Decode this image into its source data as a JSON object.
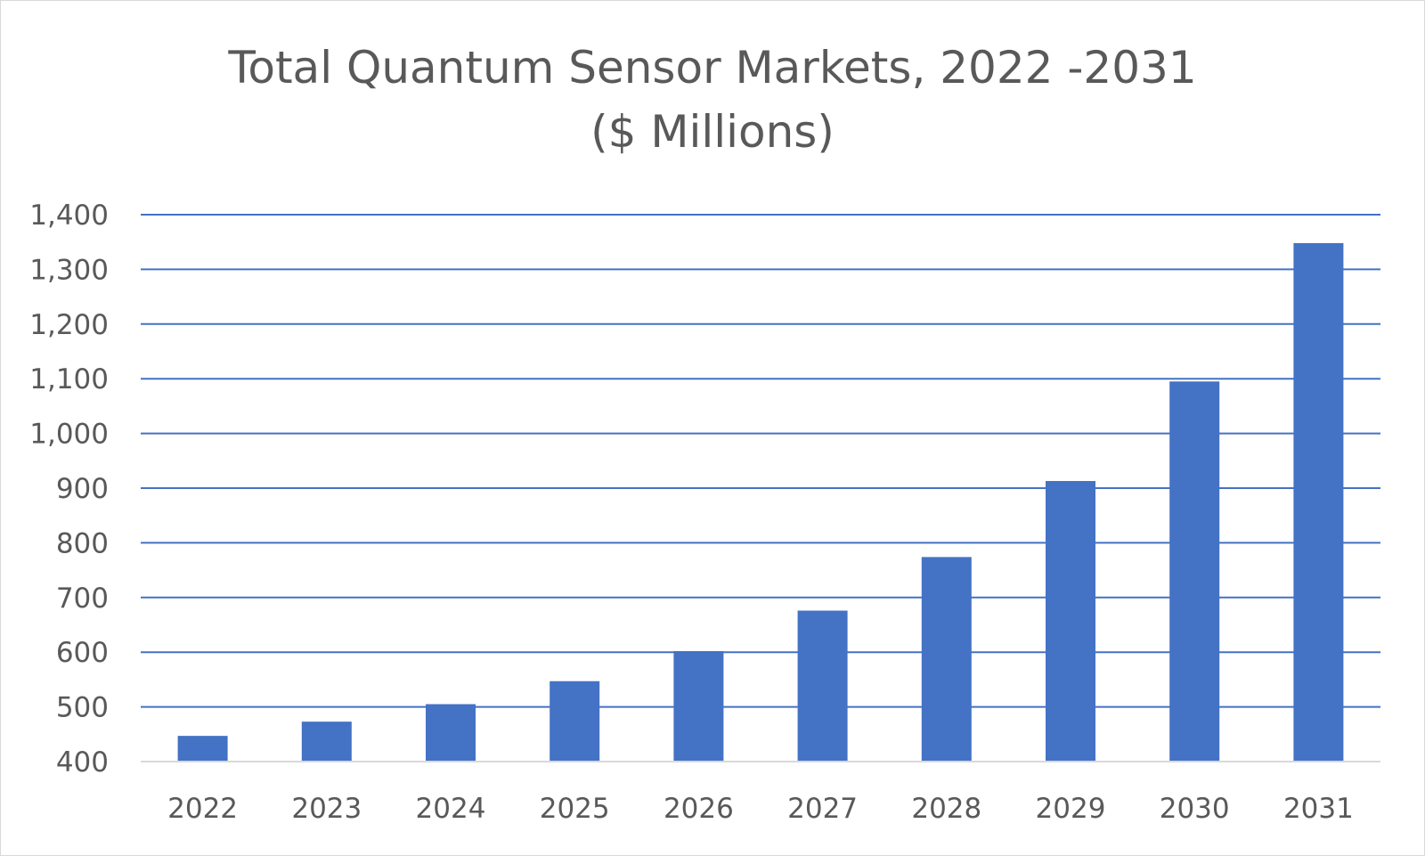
{
  "chart_data": {
    "type": "bar",
    "title_line1": "Total Quantum Sensor Markets, 2022 -2031",
    "title_line2": "($ Millions)",
    "categories": [
      "2022",
      "2023",
      "2024",
      "2025",
      "2026",
      "2027",
      "2028",
      "2029",
      "2030",
      "2031"
    ],
    "values": [
      447,
      473,
      505,
      547,
      602,
      676,
      774,
      913,
      1095,
      1348
    ],
    "yticks": [
      "400",
      "500",
      "600",
      "700",
      "800",
      "900",
      "1,000",
      "1,100",
      "1,200",
      "1,300",
      "1,400"
    ],
    "ylim": [
      400,
      1400
    ],
    "ystep": 100,
    "grid": true,
    "legend": "none",
    "colors": {
      "bar": "#4472C4",
      "gridline": "#4472C4",
      "axis": "#d9d9d9",
      "text": "#595959"
    }
  }
}
